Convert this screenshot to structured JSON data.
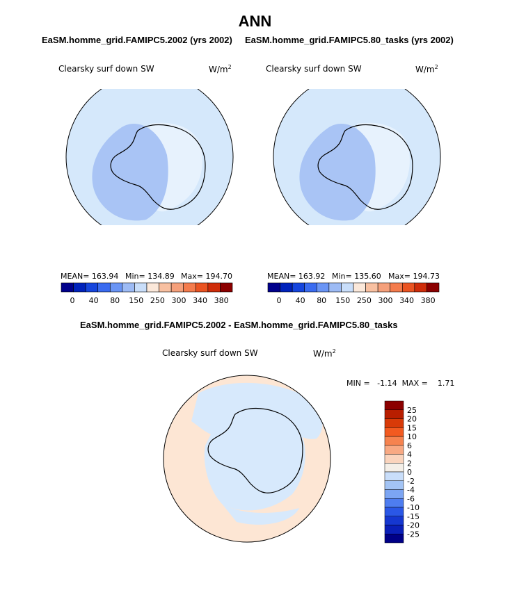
{
  "season": "ANN",
  "panels": [
    {
      "header": "EaSM.homme_grid.FAMIPC5.2002 (yrs 2002)",
      "variable": "Clearsky surf down SW",
      "units": "W/m",
      "units_sup": "2",
      "stats": {
        "mean": "MEAN= 163.94",
        "min": "Min= 134.89",
        "max": "Max= 194.70"
      }
    },
    {
      "header": "EaSM.homme_grid.FAMIPC5.80_tasks (yrs 2002)",
      "variable": "Clearsky surf down SW",
      "units": "W/m",
      "units_sup": "2",
      "stats": {
        "mean": "MEAN= 163.92",
        "min": "Min= 135.60",
        "max": "Max= 194.73"
      }
    }
  ],
  "colorbar_abs": {
    "colors": [
      "#00008b",
      "#0022bb",
      "#1545dd",
      "#3a6bf0",
      "#6a95f5",
      "#9dbbf5",
      "#c9defa",
      "#fbe8da",
      "#f8c0a1",
      "#f5a07b",
      "#f47c4d",
      "#ea5422",
      "#cf2d0a",
      "#8b0000"
    ],
    "labels": [
      "0",
      "40",
      "80",
      "150",
      "250",
      "300",
      "340",
      "380"
    ]
  },
  "diff": {
    "header": "EaSM.homme_grid.FAMIPC5.2002 - EaSM.homme_grid.FAMIPC5.80_tasks",
    "variable": "Clearsky surf down SW",
    "units": "W/m",
    "units_sup": "2",
    "minmax": "MIN =   -1.14  MAX =    1.71",
    "colorbar": {
      "colors": [
        "#8b0000",
        "#b81e00",
        "#d83a08",
        "#f25a20",
        "#f6834f",
        "#f8a983",
        "#fad4bd",
        "#f4efe8",
        "#c9defa",
        "#a3c4f5",
        "#7ca5f3",
        "#4e7df0",
        "#2a57e6",
        "#1537d0",
        "#0a1fb8",
        "#000087"
      ],
      "labels": [
        "25",
        "20",
        "15",
        "10",
        "6",
        "4",
        "2",
        "0",
        "-2",
        "-4",
        "-6",
        "-10",
        "-15",
        "-20",
        "-25"
      ]
    }
  },
  "map_colors": {
    "ocean_abs": "#d5e8fb",
    "west_low": "#a9c4f5",
    "east_high": "#e7f2fd",
    "diff_pos": "#fde6d4",
    "diff_neg": "#d7e9fc",
    "coast": "#000000"
  }
}
